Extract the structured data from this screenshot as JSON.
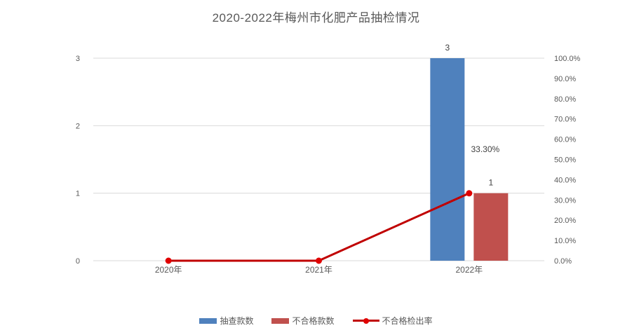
{
  "title": "2020-2022年梅州市化肥产品抽检情况",
  "chart_data": {
    "type": "combo-bar-line",
    "title": "2020-2022年梅州市化肥产品抽检情况",
    "categories": [
      "2020年",
      "2021年",
      "2022年"
    ],
    "series": [
      {
        "name": "抽查款数",
        "type": "bar",
        "axis": "left",
        "color": "#4F81BD",
        "values": [
          0,
          0,
          3
        ],
        "labels": [
          "",
          "",
          "3"
        ]
      },
      {
        "name": "不合格款数",
        "type": "bar",
        "axis": "left",
        "color": "#C0504D",
        "values": [
          0,
          0,
          1
        ],
        "labels": [
          "",
          "",
          "1"
        ]
      },
      {
        "name": "不合格检出率",
        "type": "line",
        "axis": "right",
        "color": "#C00000",
        "marker_color": "#E00000",
        "values": [
          0,
          0,
          33.3
        ],
        "labels": [
          "",
          "",
          "33.30%"
        ]
      }
    ],
    "left_axis": {
      "max": 3,
      "ticks": [
        "0",
        "1",
        "2",
        "3"
      ]
    },
    "right_axis": {
      "max": 100,
      "ticks": [
        "0.0%",
        "10.0%",
        "20.0%",
        "30.0%",
        "40.0%",
        "50.0%",
        "60.0%",
        "70.0%",
        "80.0%",
        "90.0%",
        "100.0%"
      ]
    },
    "grid": true,
    "legend_position": "bottom",
    "colors": {
      "gridline": "#D9D9D9",
      "axis_label": "#595959",
      "data_label": "#404040",
      "title": "#595959",
      "background": "#FFFFFF"
    }
  }
}
